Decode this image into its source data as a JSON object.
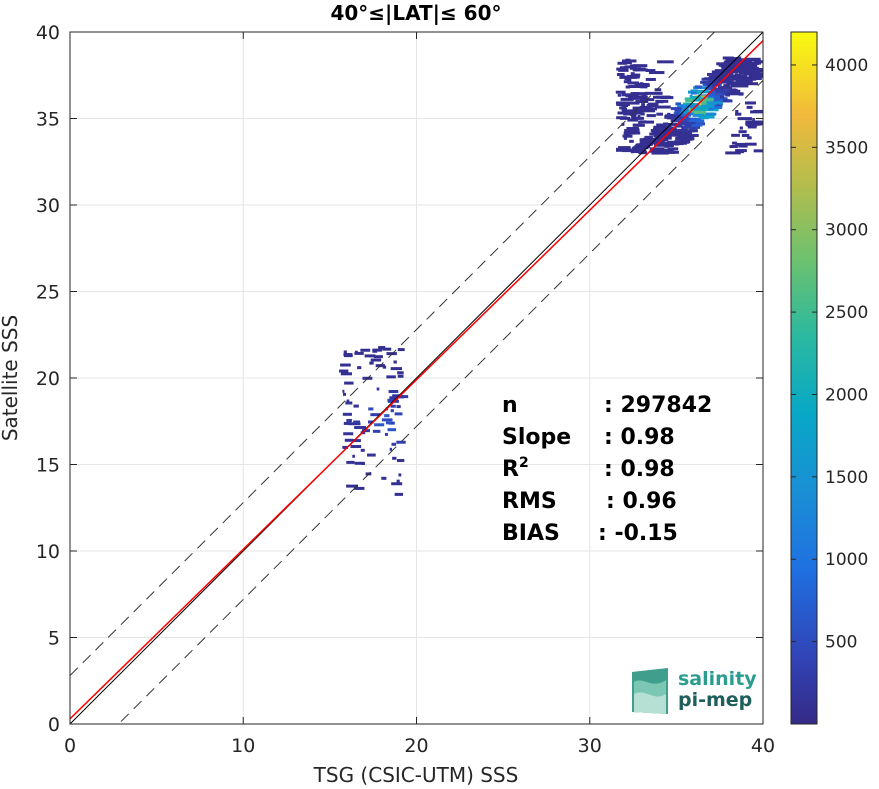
{
  "chart_data": {
    "type": "scatter",
    "subtype": "2d-density-histogram",
    "title": "40°≤|LAT|≤ 60°",
    "xlabel": "TSG (CSIC-UTM) SSS",
    "ylabel": "Satellite SSS",
    "xlim": [
      0,
      40
    ],
    "ylim": [
      0,
      40
    ],
    "xticks": [
      0,
      10,
      20,
      30,
      40
    ],
    "yticks": [
      0,
      5,
      10,
      15,
      20,
      25,
      30,
      35,
      40
    ],
    "grid": true,
    "colorbar": {
      "colormap": "parula",
      "range": [
        0,
        4200
      ],
      "ticks": [
        500,
        1000,
        1500,
        2000,
        2500,
        3000,
        3500,
        4000
      ]
    },
    "lines": {
      "identity": {
        "slope": 1,
        "intercept": 0,
        "color": "#000000"
      },
      "fit": {
        "slope": 0.98,
        "intercept": 0.3,
        "color": "#ff0000"
      },
      "upper_bound": {
        "slope": 1,
        "intercept": 2.8,
        "style": "dashed"
      },
      "lower_bound": {
        "slope": 1,
        "intercept": -2.8,
        "style": "dashed"
      }
    },
    "density_clusters": [
      {
        "x": [
          31.5,
          39.5
        ],
        "y": [
          33.0,
          38.5
        ],
        "peak": [
          36,
          35.8
        ],
        "max_count": 4200
      },
      {
        "x": [
          15.5,
          19.0
        ],
        "y": [
          13.0,
          21.8
        ],
        "peak": [
          18,
          17.5
        ],
        "max_count": 600
      }
    ],
    "stats": [
      {
        "label": "n",
        "sep": ": ",
        "value": "297842"
      },
      {
        "label": "Slope",
        "sep": ": ",
        "value": "0.98"
      },
      {
        "label": "R",
        "sup": "2",
        "sep": ": ",
        "value": "0.98"
      },
      {
        "label": "RMS",
        "sep": ": ",
        "value": "0.96"
      },
      {
        "label": "BIAS",
        "sep": ": ",
        "value": "-0.15"
      }
    ]
  },
  "logo": {
    "line1": "salinity",
    "line2": "pi-mep",
    "color": "#2a9d8f",
    "color2": "#1f5f5b"
  }
}
